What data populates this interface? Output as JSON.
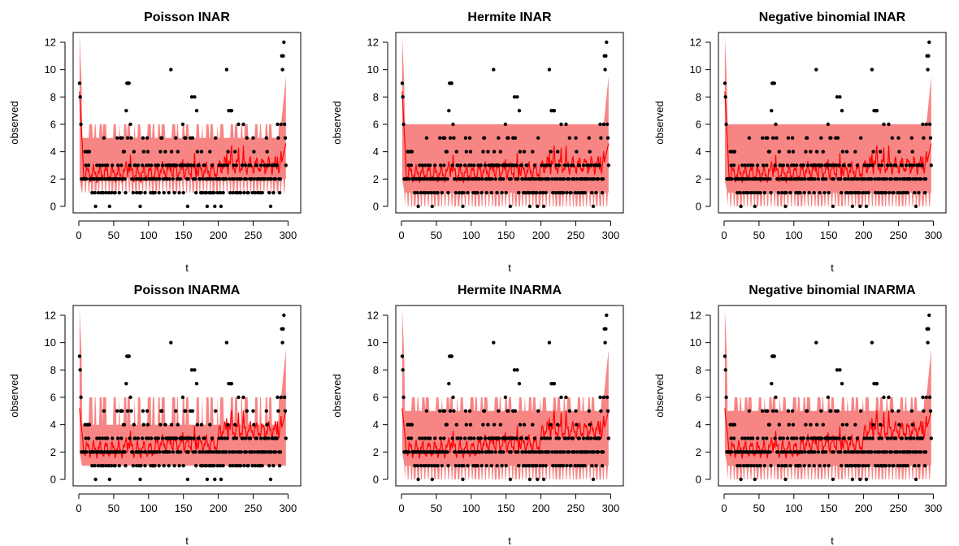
{
  "chart_data": [
    {
      "type": "scatter",
      "title": "Poisson INAR",
      "xlabel": "t",
      "ylabel": "observed",
      "xlim": [
        0,
        310
      ],
      "ylim": [
        0,
        12
      ],
      "xticks": [
        0,
        50,
        100,
        150,
        200,
        250,
        300
      ],
      "yticks": [
        0,
        2,
        4,
        6,
        8,
        10,
        12
      ],
      "band_upper": [
        5,
        6
      ],
      "band_lower": [
        1,
        2
      ],
      "mean_levels": [
        2.4,
        2.6,
        3.0
      ],
      "mean_start": 8.4,
      "mean_end": 4.6,
      "colors": {
        "band": "#f78584",
        "mean": "#ff0000",
        "points": "#000000"
      }
    },
    {
      "type": "scatter",
      "title": "Hermite INAR",
      "xlabel": "t",
      "ylabel": "observed",
      "xlim": [
        0,
        310
      ],
      "ylim": [
        0,
        12
      ],
      "xticks": [
        0,
        50,
        100,
        150,
        200,
        250,
        300
      ],
      "yticks": [
        0,
        2,
        4,
        6,
        8,
        10,
        12
      ],
      "band_upper": [
        6,
        6
      ],
      "band_lower": [
        0,
        1
      ],
      "mean_levels": [
        2.4,
        2.6,
        3.0
      ],
      "mean_start": 8.4,
      "mean_end": 4.6,
      "colors": {
        "band": "#f78584",
        "mean": "#ff0000",
        "points": "#000000"
      }
    },
    {
      "type": "scatter",
      "title": "Negative binomial INAR",
      "xlabel": "t",
      "ylabel": "observed",
      "xlim": [
        0,
        310
      ],
      "ylim": [
        0,
        12
      ],
      "xticks": [
        0,
        50,
        100,
        150,
        200,
        250,
        300
      ],
      "yticks": [
        0,
        2,
        4,
        6,
        8,
        10,
        12
      ],
      "band_upper": [
        6,
        6
      ],
      "band_lower": [
        0,
        1
      ],
      "mean_levels": [
        2.4,
        2.6,
        3.0
      ],
      "mean_start": 8.4,
      "mean_end": 4.6,
      "colors": {
        "band": "#f78584",
        "mean": "#ff0000",
        "points": "#000000"
      }
    },
    {
      "type": "scatter",
      "title": "Poisson INARMA",
      "xlabel": "t",
      "ylabel": "observed",
      "xlim": [
        0,
        310
      ],
      "ylim": [
        0,
        12
      ],
      "xticks": [
        0,
        50,
        100,
        150,
        200,
        250,
        300
      ],
      "yticks": [
        0,
        2,
        4,
        6,
        8,
        10,
        12
      ],
      "band_upper": [
        4,
        6
      ],
      "band_lower": [
        1,
        1
      ],
      "mean_levels": [
        2.2,
        2.6,
        3.6
      ],
      "mean_start": 5.2,
      "mean_end": 5.0,
      "colors": {
        "band": "#f78584",
        "mean": "#ff0000",
        "points": "#000000"
      }
    },
    {
      "type": "scatter",
      "title": "Hermite INARMA",
      "xlabel": "t",
      "ylabel": "observed",
      "xlim": [
        0,
        310
      ],
      "ylim": [
        0,
        12
      ],
      "xticks": [
        0,
        50,
        100,
        150,
        200,
        250,
        300
      ],
      "yticks": [
        0,
        2,
        4,
        6,
        8,
        10,
        12
      ],
      "band_upper": [
        5,
        6
      ],
      "band_lower": [
        0,
        1
      ],
      "mean_levels": [
        2.2,
        2.6,
        3.6
      ],
      "mean_start": 5.2,
      "mean_end": 5.0,
      "colors": {
        "band": "#f78584",
        "mean": "#ff0000",
        "points": "#000000"
      }
    },
    {
      "type": "scatter",
      "title": "Negative binomial INARMA",
      "xlabel": "t",
      "ylabel": "observed",
      "xlim": [
        0,
        310
      ],
      "ylim": [
        0,
        12
      ],
      "xticks": [
        0,
        50,
        100,
        150,
        200,
        250,
        300
      ],
      "yticks": [
        0,
        2,
        4,
        6,
        8,
        10,
        12
      ],
      "band_upper": [
        5,
        6
      ],
      "band_lower": [
        0,
        1
      ],
      "mean_levels": [
        2.2,
        2.6,
        3.6
      ],
      "mean_start": 5.2,
      "mean_end": 5.0,
      "colors": {
        "band": "#f78584",
        "mean": "#ff0000",
        "points": "#000000"
      }
    }
  ],
  "observed_series": {
    "t_start": 1,
    "values": [
      9,
      8,
      6,
      2,
      2,
      2,
      2,
      2,
      4,
      3,
      2,
      4,
      4,
      3,
      4,
      2,
      2,
      2,
      1,
      2,
      2,
      2,
      1,
      0,
      2,
      3,
      2,
      1,
      2,
      3,
      2,
      1,
      2,
      3,
      1,
      5,
      2,
      3,
      1,
      2,
      3,
      2,
      1,
      0,
      2,
      2,
      1,
      3,
      2,
      2,
      1,
      1,
      2,
      2,
      5,
      3,
      2,
      1,
      2,
      5,
      3,
      5,
      2,
      4,
      4,
      2,
      1,
      7,
      9,
      5,
      9,
      9,
      3,
      6,
      5,
      2,
      2,
      1,
      4,
      3,
      3,
      2,
      1,
      2,
      3,
      2,
      1,
      0,
      1,
      2,
      3,
      5,
      4,
      2,
      1,
      2,
      3,
      5,
      4,
      3,
      2,
      2,
      1,
      3,
      2,
      1,
      1,
      2,
      1,
      3,
      2,
      2,
      3,
      3,
      1,
      2,
      4,
      5,
      5,
      3,
      2,
      1,
      2,
      4,
      3,
      2,
      2,
      3,
      1,
      2,
      3,
      10,
      4,
      3,
      2,
      3,
      1,
      3,
      5,
      3,
      2,
      4,
      2,
      1,
      3,
      2,
      3,
      3,
      6,
      1,
      3,
      5,
      5,
      3,
      2,
      0,
      2,
      3,
      3,
      5,
      3,
      8,
      5,
      2,
      3,
      8,
      2,
      1,
      7,
      4,
      3,
      3,
      2,
      2,
      1,
      4,
      1,
      2,
      3,
      3,
      1,
      2,
      1,
      0,
      2,
      2,
      1,
      4,
      1,
      2,
      3,
      1,
      2,
      1,
      0,
      5,
      2,
      2,
      1,
      2,
      3,
      2,
      1,
      0,
      3,
      2,
      1,
      2,
      3,
      2,
      2,
      10,
      3,
      4,
      7,
      2,
      1,
      7,
      7,
      2,
      1,
      3,
      2,
      4,
      1,
      3,
      2,
      1,
      6,
      2,
      1,
      1,
      2,
      3,
      3,
      6,
      1,
      2,
      3,
      2,
      5,
      1,
      1,
      3,
      2,
      3,
      2,
      2,
      1,
      5,
      4,
      2,
      1,
      3,
      3,
      2,
      1,
      2,
      2,
      1,
      3,
      2,
      1,
      2,
      2,
      3,
      2,
      3,
      5,
      4,
      2,
      3,
      1,
      2,
      0,
      2,
      3,
      3,
      1,
      2,
      3,
      2,
      3,
      3,
      6,
      5,
      2,
      1,
      2,
      6,
      11,
      10,
      11,
      12,
      6,
      5,
      3
    ]
  }
}
